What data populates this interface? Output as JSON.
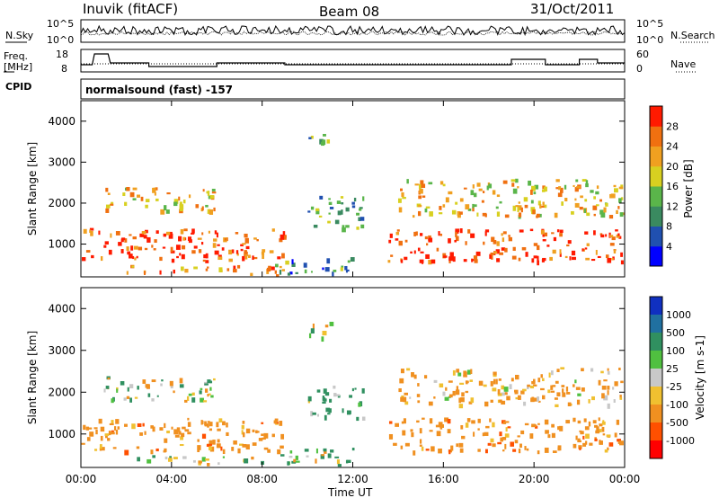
{
  "header": {
    "station": "Inuvik (fitACF)",
    "beam": "Beam 08",
    "date": "31/Oct/2011"
  },
  "noise_panel": {
    "left_label": "N.Sky",
    "right_label": "N.Search",
    "left_ticks": [
      "10^5",
      "10^0"
    ],
    "right_ticks": [
      "10^5",
      "10^0"
    ]
  },
  "freq_panel": {
    "left_label_1": "Freq.",
    "left_label_2": "[MHz]",
    "right_label": "Nave",
    "left_ticks": [
      "18",
      "8"
    ],
    "right_ticks": [
      "60",
      "0"
    ]
  },
  "cpid": {
    "label": "CPID",
    "text": "normalsound (fast) -157"
  },
  "x_axis": {
    "label": "Time UT",
    "ticks": [
      "00:00",
      "04:00",
      "08:00",
      "12:00",
      "16:00",
      "20:00",
      "00:00"
    ]
  },
  "power_panel": {
    "ylabel": "Slant Range [km]",
    "yticks": [
      "1000",
      "2000",
      "3000",
      "4000"
    ],
    "colorbar_label": "Power [dB]",
    "colorbar_ticks": [
      "4",
      "8",
      "12",
      "16",
      "20",
      "24",
      "28"
    ],
    "colors": [
      "#0000ff",
      "#2050b0",
      "#3a8a60",
      "#5ab54a",
      "#d8d020",
      "#f0a020",
      "#f07010",
      "#ff1a00"
    ]
  },
  "velocity_panel": {
    "ylabel": "Slant Range [km]",
    "yticks": [
      "1000",
      "2000",
      "3000",
      "4000"
    ],
    "colorbar_label": "Velocity [m s-1]",
    "colorbar_ticks": [
      "1000",
      "500",
      "100",
      "25",
      "-25",
      "-100",
      "-500",
      "-1000"
    ],
    "colors": [
      "#1030c0",
      "#2070a0",
      "#309060",
      "#50c040",
      "#c8c8c8",
      "#f0c030",
      "#f09020",
      "#ff5000",
      "#ff0000"
    ]
  },
  "chart_data": {
    "type": "heatmap",
    "title": "Inuvik (fitACF) Beam 08 31/Oct/2011",
    "xlabel": "Time UT",
    "ylabel": "Slant Range [km]",
    "x_range_hours": [
      0,
      24
    ],
    "y_range_km": [
      200,
      4500
    ],
    "echo_regions": [
      {
        "t_start": 0,
        "t_end": 9,
        "r_min": 600,
        "r_max": 1400,
        "power_db": 28,
        "velocity": -300
      },
      {
        "t_start": 2,
        "t_end": 9,
        "r_min": 200,
        "r_max": 500,
        "power_db": 24,
        "velocity": 50
      },
      {
        "t_start": 8.5,
        "t_end": 12,
        "r_min": 250,
        "r_max": 700,
        "power_db": 10,
        "velocity": 100
      },
      {
        "t_start": 10,
        "t_end": 12.5,
        "r_min": 1400,
        "r_max": 2200,
        "power_db": 12,
        "velocity": 200
      },
      {
        "t_start": 13.5,
        "t_end": 24,
        "r_min": 600,
        "r_max": 1400,
        "power_db": 28,
        "velocity": -300
      },
      {
        "t_start": 14,
        "t_end": 24,
        "r_min": 1700,
        "r_max": 2600,
        "power_db": 20,
        "velocity": -200
      },
      {
        "t_start": 1,
        "t_end": 6,
        "r_min": 1800,
        "r_max": 2400,
        "power_db": 20,
        "velocity": 0
      },
      {
        "t_start": 10,
        "t_end": 11,
        "r_min": 3300,
        "r_max": 3700,
        "power_db": 12,
        "velocity": 50
      }
    ]
  }
}
